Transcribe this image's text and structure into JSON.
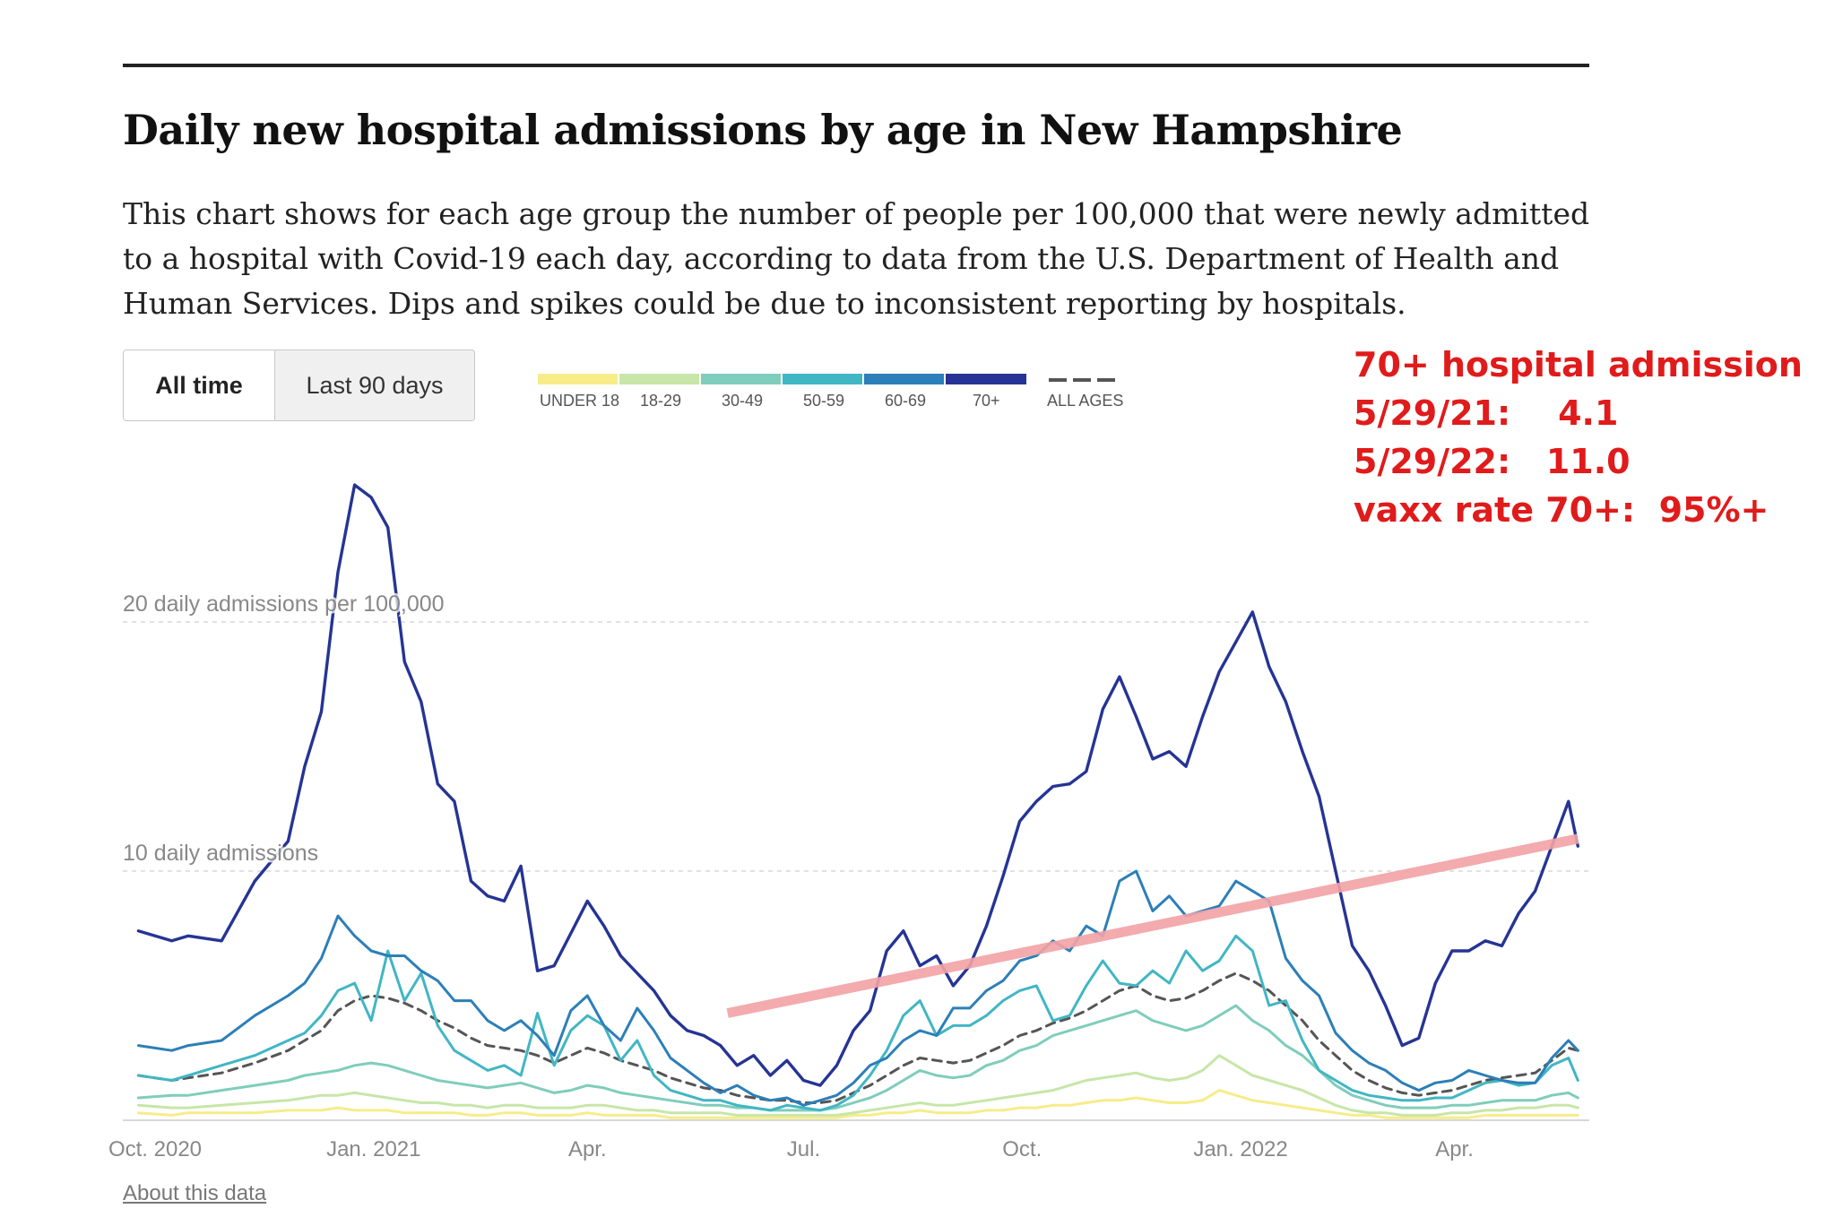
{
  "title": "Daily new hospital admissions by age in New Hampshire",
  "description": "This chart shows for each age group the number of people per 100,000 that were newly admitted to a hospital with Covid-19 each day, according to data from the U.S. Department of Health and Human Services. Dips and spikes could be due to inconsistent reporting by hospitals.",
  "toggle": {
    "all_time": "All time",
    "last_90": "Last 90 days"
  },
  "legend": [
    {
      "label": "UNDER 18",
      "color": "#f7ec8a"
    },
    {
      "label": "18-29",
      "color": "#c7e6a8"
    },
    {
      "label": "30-49",
      "color": "#7fcdbb"
    },
    {
      "label": "50-59",
      "color": "#41b6c4"
    },
    {
      "label": "60-69",
      "color": "#2c7fb8"
    },
    {
      "label": "70+",
      "color": "#253494"
    },
    {
      "label": "ALL AGES",
      "color": "#555555"
    }
  ],
  "annotation": {
    "line1": "70+ hospital admission",
    "line2": "5/29/21:    4.1",
    "line3": "5/29/22:   11.0",
    "line4": "vaxx rate 70+:  95%+"
  },
  "about": "About this data",
  "chart_data": {
    "type": "line",
    "xlabel": "",
    "ylabel": "daily admissions per 100,000",
    "ylim": [
      0,
      26
    ],
    "yticks": [
      {
        "value": 10,
        "label": "10 daily admissions"
      },
      {
        "value": 20,
        "label": "20 daily admissions per 100,000"
      }
    ],
    "xticks": [
      {
        "day": 0,
        "label": "Oct. 2020"
      },
      {
        "day": 92,
        "label": "Jan. 2021"
      },
      {
        "day": 182,
        "label": "Apr."
      },
      {
        "day": 273,
        "label": "Jul."
      },
      {
        "day": 365,
        "label": "Oct."
      },
      {
        "day": 457,
        "label": "Jan. 2022"
      },
      {
        "day": 547,
        "label": "Apr."
      }
    ],
    "x": [
      -7,
      7,
      14,
      28,
      42,
      56,
      63,
      70,
      77,
      84,
      91,
      98,
      105,
      112,
      119,
      126,
      133,
      140,
      147,
      154,
      161,
      168,
      175,
      182,
      189,
      196,
      203,
      210,
      217,
      224,
      231,
      238,
      245,
      252,
      259,
      266,
      273,
      280,
      287,
      294,
      301,
      308,
      315,
      322,
      329,
      336,
      343,
      350,
      357,
      364,
      371,
      378,
      385,
      392,
      399,
      406,
      413,
      420,
      427,
      434,
      441,
      448,
      455,
      462,
      469,
      476,
      483,
      490,
      497,
      504,
      511,
      518,
      525,
      532,
      539,
      546,
      553,
      560,
      567,
      574,
      581,
      588,
      595,
      599
    ],
    "series": [
      {
        "name": "70+",
        "color": "#253494",
        "values": [
          7.6,
          7.2,
          7.4,
          7.2,
          9.6,
          11.2,
          14.2,
          16.4,
          22.0,
          25.5,
          25.0,
          23.8,
          18.4,
          16.8,
          13.5,
          12.8,
          9.6,
          9.0,
          8.8,
          10.2,
          6.0,
          6.2,
          7.5,
          8.8,
          7.8,
          6.6,
          5.9,
          5.2,
          4.2,
          3.6,
          3.4,
          3.0,
          2.2,
          2.6,
          1.8,
          2.4,
          1.6,
          1.4,
          2.2,
          3.6,
          4.4,
          6.8,
          7.6,
          6.2,
          6.6,
          5.4,
          6.2,
          7.8,
          9.8,
          12.0,
          12.8,
          13.4,
          13.5,
          14.0,
          16.5,
          17.8,
          16.2,
          14.5,
          14.8,
          14.2,
          16.2,
          18.0,
          19.2,
          20.4,
          18.2,
          16.8,
          14.8,
          13.0,
          10.0,
          7.0,
          6.0,
          4.6,
          3.0,
          3.3,
          5.5,
          6.8,
          6.8,
          7.2,
          7.0,
          8.3,
          9.2,
          11.0,
          12.8,
          11.0
        ]
      },
      {
        "name": "60-69",
        "color": "#2c7fb8",
        "values": [
          3.0,
          2.8,
          3.0,
          3.2,
          4.2,
          5.0,
          5.5,
          6.5,
          8.2,
          7.4,
          6.8,
          6.6,
          6.6,
          6.0,
          5.6,
          4.8,
          4.8,
          4.0,
          3.6,
          4.0,
          3.4,
          2.6,
          4.4,
          5.0,
          3.8,
          3.2,
          4.5,
          3.6,
          2.5,
          2.0,
          1.5,
          1.1,
          1.4,
          1.0,
          0.8,
          0.9,
          0.6,
          0.8,
          1.0,
          1.5,
          2.2,
          2.5,
          3.2,
          3.6,
          3.4,
          4.5,
          4.5,
          5.2,
          5.6,
          6.4,
          6.6,
          7.2,
          6.8,
          7.8,
          7.4,
          9.6,
          10.0,
          8.4,
          9.0,
          8.2,
          8.4,
          8.6,
          9.6,
          9.2,
          8.8,
          6.5,
          5.6,
          5.0,
          3.5,
          2.8,
          2.3,
          2.0,
          1.5,
          1.2,
          1.5,
          1.6,
          2.0,
          1.8,
          1.6,
          1.5,
          1.5,
          2.5,
          3.2,
          2.8
        ]
      },
      {
        "name": "50-59",
        "color": "#41b6c4",
        "values": [
          1.8,
          1.6,
          1.8,
          2.2,
          2.6,
          3.2,
          3.5,
          4.2,
          5.2,
          5.5,
          4.0,
          6.8,
          4.8,
          5.9,
          3.8,
          2.8,
          2.4,
          2.0,
          2.2,
          1.8,
          4.3,
          2.2,
          3.6,
          4.2,
          3.8,
          2.4,
          3.2,
          1.8,
          1.2,
          1.0,
          0.8,
          0.8,
          0.6,
          0.5,
          0.4,
          0.6,
          0.5,
          0.4,
          0.6,
          1.0,
          1.8,
          2.8,
          4.2,
          4.8,
          3.4,
          3.8,
          3.8,
          4.2,
          4.8,
          5.2,
          5.4,
          4.0,
          4.2,
          5.4,
          6.4,
          5.5,
          5.4,
          6.0,
          5.5,
          6.8,
          6.0,
          6.4,
          7.4,
          6.8,
          4.6,
          4.8,
          3.2,
          2.0,
          1.6,
          1.2,
          1.0,
          0.9,
          0.8,
          0.8,
          0.9,
          0.9,
          1.2,
          1.5,
          1.6,
          1.4,
          1.5,
          2.2,
          2.5,
          1.6
        ]
      },
      {
        "name": "30-49",
        "color": "#7fcdbb",
        "values": [
          0.9,
          1.0,
          1.0,
          1.2,
          1.4,
          1.6,
          1.8,
          1.9,
          2.0,
          2.2,
          2.3,
          2.2,
          2.0,
          1.8,
          1.6,
          1.5,
          1.4,
          1.3,
          1.4,
          1.5,
          1.3,
          1.1,
          1.2,
          1.4,
          1.3,
          1.1,
          1.0,
          0.9,
          0.8,
          0.7,
          0.6,
          0.6,
          0.5,
          0.5,
          0.4,
          0.4,
          0.4,
          0.4,
          0.5,
          0.7,
          0.9,
          1.2,
          1.6,
          2.0,
          1.8,
          1.7,
          1.8,
          2.2,
          2.4,
          2.8,
          3.0,
          3.4,
          3.6,
          3.8,
          4.0,
          4.2,
          4.4,
          4.0,
          3.8,
          3.6,
          3.8,
          4.2,
          4.6,
          4.0,
          3.6,
          3.0,
          2.6,
          2.0,
          1.4,
          1.0,
          0.8,
          0.6,
          0.5,
          0.5,
          0.5,
          0.6,
          0.6,
          0.7,
          0.8,
          0.8,
          0.8,
          1.0,
          1.1,
          0.9
        ]
      },
      {
        "name": "18-29",
        "color": "#c7e6a8",
        "values": [
          0.6,
          0.5,
          0.5,
          0.6,
          0.7,
          0.8,
          0.9,
          1.0,
          1.0,
          1.1,
          1.0,
          0.9,
          0.8,
          0.7,
          0.7,
          0.6,
          0.6,
          0.5,
          0.6,
          0.6,
          0.5,
          0.5,
          0.5,
          0.6,
          0.6,
          0.5,
          0.4,
          0.4,
          0.3,
          0.3,
          0.3,
          0.3,
          0.2,
          0.2,
          0.2,
          0.2,
          0.2,
          0.2,
          0.2,
          0.3,
          0.4,
          0.5,
          0.6,
          0.7,
          0.6,
          0.6,
          0.7,
          0.8,
          0.9,
          1.0,
          1.1,
          1.2,
          1.4,
          1.6,
          1.7,
          1.8,
          1.9,
          1.7,
          1.6,
          1.7,
          2.0,
          2.6,
          2.2,
          1.8,
          1.6,
          1.4,
          1.2,
          0.9,
          0.6,
          0.4,
          0.3,
          0.3,
          0.2,
          0.2,
          0.2,
          0.3,
          0.3,
          0.4,
          0.4,
          0.5,
          0.5,
          0.6,
          0.6,
          0.5
        ]
      },
      {
        "name": "Under 18",
        "color": "#f7ec8a",
        "values": [
          0.3,
          0.2,
          0.3,
          0.3,
          0.3,
          0.4,
          0.4,
          0.4,
          0.5,
          0.4,
          0.4,
          0.4,
          0.3,
          0.3,
          0.3,
          0.3,
          0.2,
          0.2,
          0.3,
          0.3,
          0.2,
          0.2,
          0.2,
          0.3,
          0.2,
          0.2,
          0.2,
          0.2,
          0.1,
          0.1,
          0.1,
          0.1,
          0.1,
          0.1,
          0.1,
          0.1,
          0.1,
          0.1,
          0.1,
          0.2,
          0.2,
          0.3,
          0.3,
          0.4,
          0.3,
          0.3,
          0.3,
          0.4,
          0.4,
          0.5,
          0.5,
          0.6,
          0.6,
          0.7,
          0.8,
          0.8,
          0.9,
          0.8,
          0.7,
          0.7,
          0.8,
          1.2,
          1.0,
          0.8,
          0.7,
          0.6,
          0.5,
          0.4,
          0.3,
          0.2,
          0.2,
          0.1,
          0.1,
          0.1,
          0.1,
          0.1,
          0.1,
          0.2,
          0.2,
          0.2,
          0.2,
          0.2,
          0.2,
          0.2
        ]
      },
      {
        "name": "All ages",
        "color": "#555555",
        "dashed": true,
        "values": [
          1.8,
          1.6,
          1.7,
          1.9,
          2.3,
          2.8,
          3.2,
          3.6,
          4.4,
          4.8,
          5.0,
          4.9,
          4.7,
          4.4,
          4.0,
          3.7,
          3.3,
          3.0,
          2.9,
          2.8,
          2.6,
          2.3,
          2.6,
          2.9,
          2.7,
          2.4,
          2.2,
          2.0,
          1.7,
          1.5,
          1.3,
          1.2,
          1.0,
          0.9,
          0.8,
          0.8,
          0.7,
          0.7,
          0.8,
          1.1,
          1.4,
          1.8,
          2.2,
          2.5,
          2.4,
          2.3,
          2.4,
          2.7,
          3.0,
          3.4,
          3.6,
          3.9,
          4.1,
          4.4,
          4.8,
          5.2,
          5.4,
          5.0,
          4.8,
          4.9,
          5.2,
          5.6,
          5.9,
          5.6,
          5.2,
          4.6,
          4.0,
          3.2,
          2.6,
          2.0,
          1.6,
          1.3,
          1.1,
          1.0,
          1.1,
          1.2,
          1.4,
          1.6,
          1.7,
          1.8,
          1.9,
          2.4,
          2.9,
          2.8
        ]
      }
    ],
    "trend_line": {
      "color": "#f2a3a6",
      "from": {
        "day": 241,
        "value": 4.3
      },
      "to": {
        "day": 599,
        "value": 11.3
      }
    }
  }
}
